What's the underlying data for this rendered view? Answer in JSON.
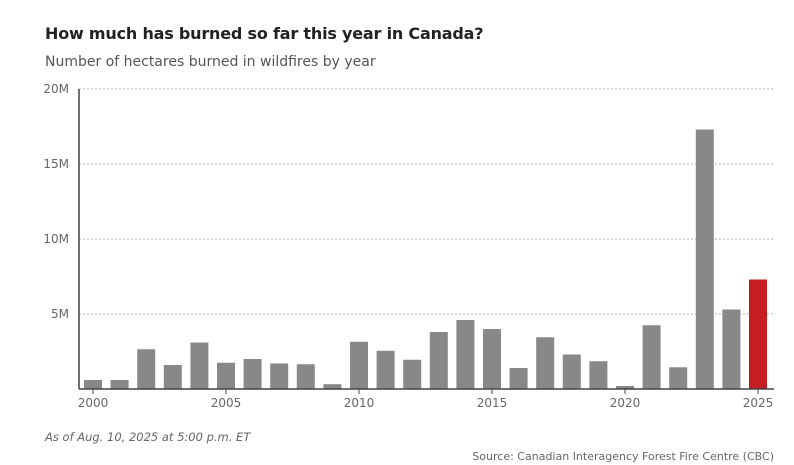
{
  "title": "How much has burned so far this year in Canada?",
  "subtitle": "Number of hectares burned in wildfires by year",
  "note": "As of Aug. 10, 2025 at 5:00 p.m. ET",
  "source": "Source: Canadian Interagency Forest Fire Centre (CBC)",
  "colors": {
    "bar": "#888888",
    "highlight": "#c41e24",
    "grid": "#b0b0b0",
    "axis": "#444444"
  },
  "chart_data": {
    "type": "bar",
    "title": "How much has burned so far this year in Canada?",
    "subtitle": "Number of hectares burned in wildfires by year",
    "xlabel": "",
    "ylabel": "",
    "ylim": [
      0,
      20000000
    ],
    "grid": true,
    "highlight_category": 2025,
    "categories": [
      2000,
      2001,
      2002,
      2003,
      2004,
      2005,
      2006,
      2007,
      2008,
      2009,
      2010,
      2011,
      2012,
      2013,
      2014,
      2015,
      2016,
      2017,
      2018,
      2019,
      2020,
      2021,
      2022,
      2023,
      2024,
      2025
    ],
    "values": [
      600000,
      600000,
      2650000,
      1600000,
      3100000,
      1750000,
      2000000,
      1700000,
      1650000,
      320000,
      3150000,
      2550000,
      1950000,
      3800000,
      4600000,
      4000000,
      1400000,
      3450000,
      2300000,
      1850000,
      200000,
      4250000,
      1450000,
      17300000,
      5300000,
      7300000
    ],
    "y_ticks": [
      {
        "value": 5000000,
        "label": "5M"
      },
      {
        "value": 10000000,
        "label": "10M"
      },
      {
        "value": 15000000,
        "label": "15M"
      },
      {
        "value": 20000000,
        "label": "20M"
      }
    ],
    "x_ticks": [
      {
        "value": 2000,
        "label": "2000"
      },
      {
        "value": 2005,
        "label": "2005"
      },
      {
        "value": 2010,
        "label": "2010"
      },
      {
        "value": 2015,
        "label": "2015"
      },
      {
        "value": 2020,
        "label": "2020"
      },
      {
        "value": 2025,
        "label": "2025"
      }
    ]
  }
}
